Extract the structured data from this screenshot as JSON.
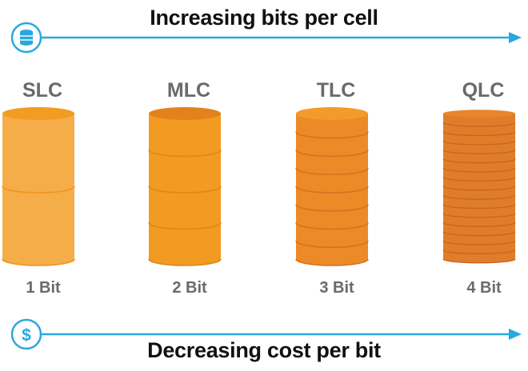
{
  "top": {
    "title": "Increasing bits per cell",
    "icon": "database-icon"
  },
  "bottom": {
    "title": "Decreasing cost per bit",
    "icon": "dollar-icon",
    "icon_text": "$"
  },
  "columns": [
    {
      "name": "SLC",
      "bits_label": "1 Bit",
      "layers": 2,
      "body": "#f4ad48",
      "top": "#f29c22",
      "edge": "#ef9620",
      "key": "slc"
    },
    {
      "name": "MLC",
      "bits_label": "2 Bit",
      "layers": 4,
      "body": "#f19b22",
      "top": "#e3821d",
      "edge": "#e0871a",
      "key": "mlc"
    },
    {
      "name": "TLC",
      "bits_label": "3 Bit",
      "layers": 8,
      "body": "#ec8a27",
      "top": "#f39a2a",
      "edge": "#da7121",
      "key": "tlc"
    },
    {
      "name": "QLC",
      "bits_label": "4 Bit",
      "layers": 16,
      "body": "#e07d2a",
      "top": "#e7862c",
      "edge": "#c96320",
      "key": "qlc"
    }
  ],
  "colors": {
    "accent": "#29a8e0",
    "title_text": "#111111",
    "label_text": "#6a6a6a"
  }
}
